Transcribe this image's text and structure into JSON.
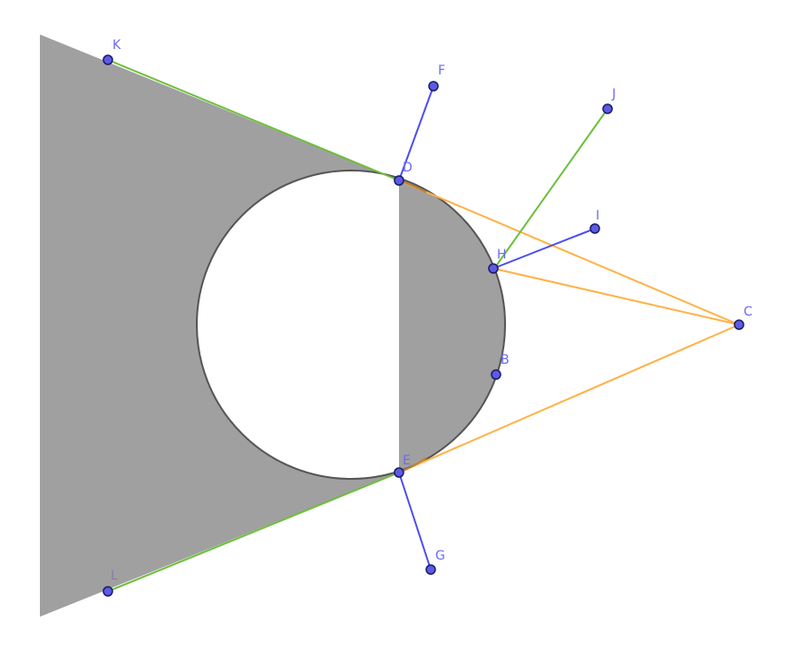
{
  "figure": {
    "colors": {
      "shade": "#a0a0a0",
      "circle_stroke": "#555555",
      "orange": "#ffb246",
      "green": "#6cbf3a",
      "blue": "#4d4df2",
      "point_fill": "#5b5be6",
      "point_stroke": "#1a1a66",
      "label": "#6b6bf0"
    },
    "points": {
      "K": "K",
      "F": "F",
      "J": "J",
      "D": "D",
      "I": "I",
      "H": "H",
      "C": "C",
      "B": "B",
      "E": "E",
      "G": "G",
      "L": "L"
    }
  }
}
